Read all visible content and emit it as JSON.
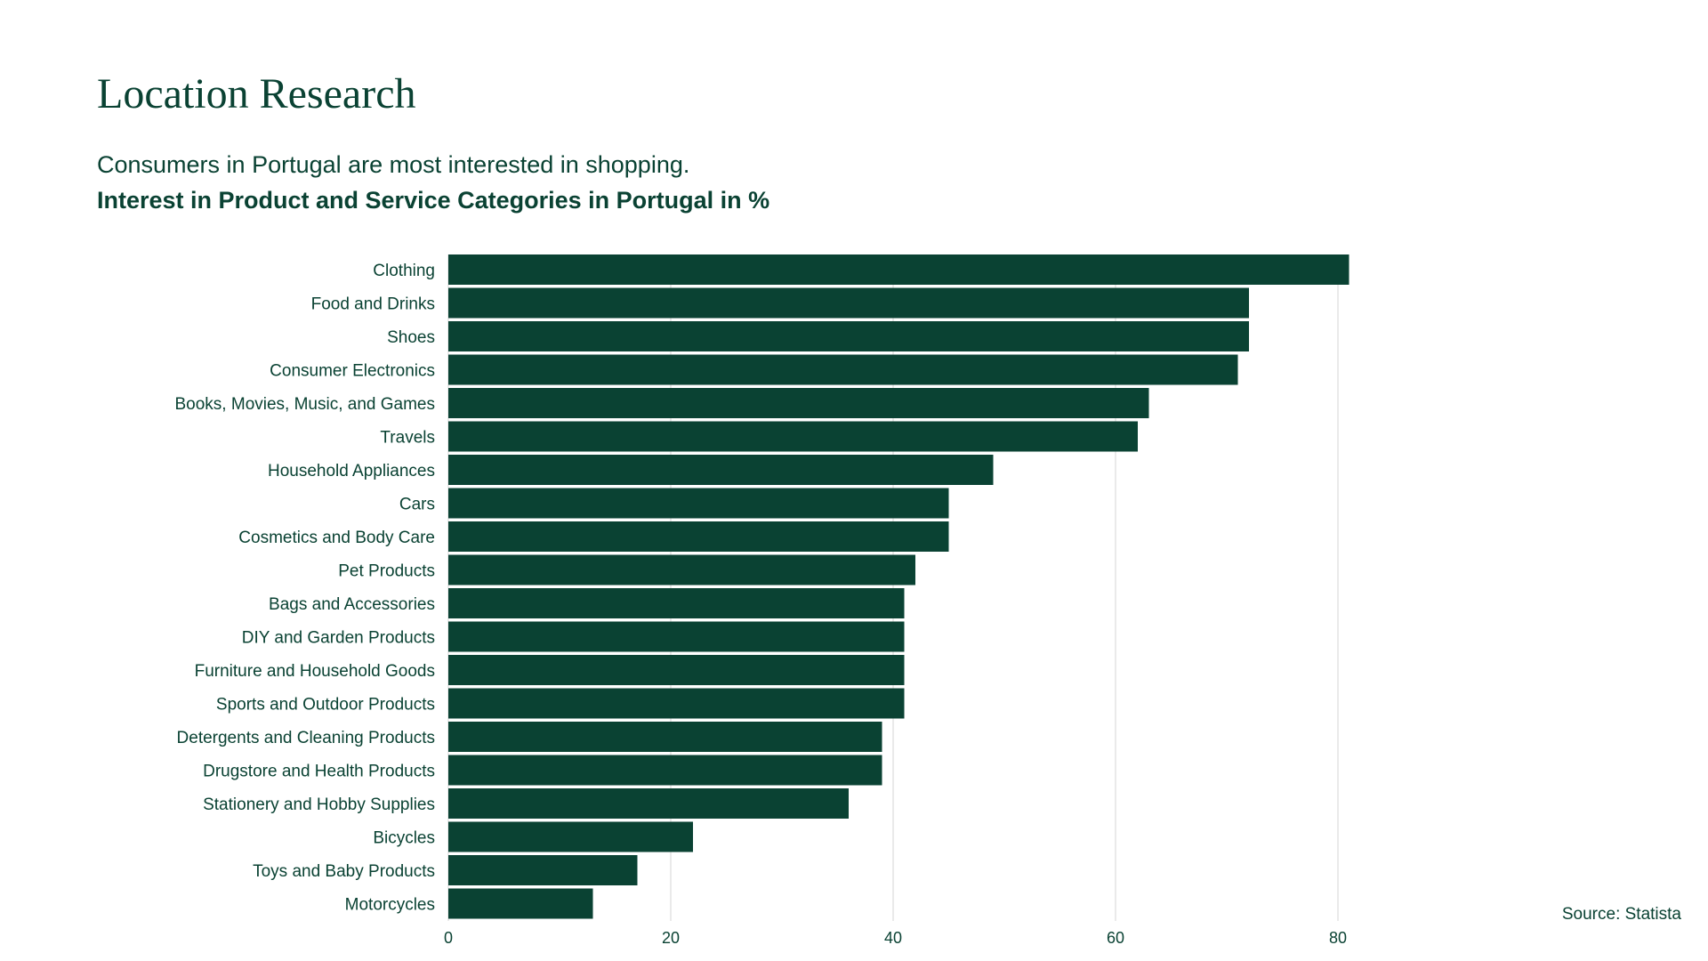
{
  "page": {
    "heading": "Location Research",
    "subtitle": "Consumers in Portugal are most interested in shopping.",
    "source": "Source: Statista"
  },
  "colors": {
    "bar": "#0a4233",
    "text": "#0a4233",
    "grid": "#d6d6d6"
  },
  "chart_data": {
    "type": "bar",
    "orientation": "horizontal",
    "title": "Interest in Product and Service Categories in Portugal in %",
    "xlabel": "",
    "ylabel": "",
    "xlim": [
      0,
      100
    ],
    "ticks": [
      0,
      20,
      40,
      60,
      80
    ],
    "grid": true,
    "legend": "none",
    "categories": [
      "Clothing",
      "Food and Drinks",
      "Shoes",
      "Consumer Electronics",
      "Books, Movies, Music, and Games",
      "Travels",
      "Household Appliances",
      "Cars",
      "Cosmetics and Body Care",
      "Pet Products",
      "Bags and Accessories",
      "DIY and Garden Products",
      "Furniture and Household Goods",
      "Sports and Outdoor Products",
      "Detergents and Cleaning Products",
      "Drugstore and Health Products",
      "Stationery and Hobby Supplies",
      "Bicycles",
      "Toys and Baby Products",
      "Motorcycles"
    ],
    "values": [
      81,
      72,
      72,
      71,
      63,
      62,
      49,
      45,
      45,
      42,
      41,
      41,
      41,
      41,
      39,
      39,
      36,
      22,
      17,
      13
    ]
  }
}
